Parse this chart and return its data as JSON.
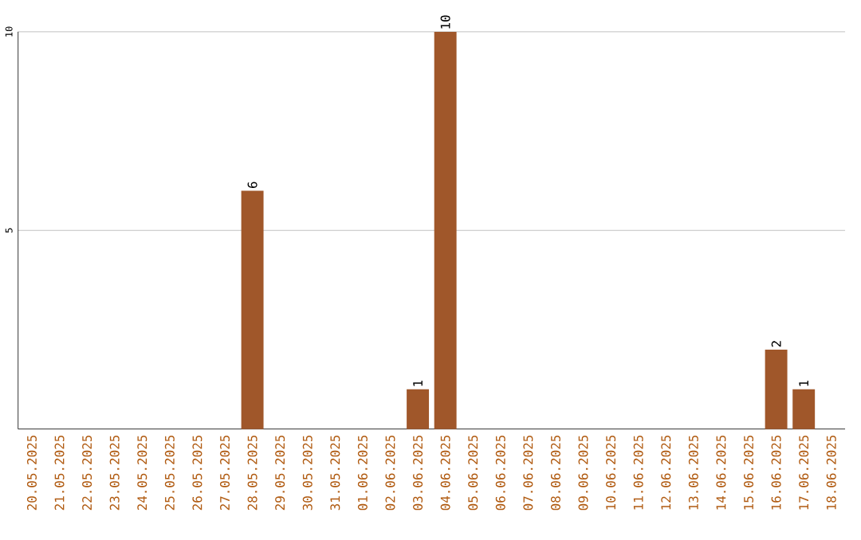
{
  "chart_data": {
    "type": "bar",
    "categories": [
      "20.05.2025",
      "21.05.2025",
      "22.05.2025",
      "23.05.2025",
      "24.05.2025",
      "25.05.2025",
      "26.05.2025",
      "27.05.2025",
      "28.05.2025",
      "29.05.2025",
      "30.05.2025",
      "31.05.2025",
      "01.06.2025",
      "02.06.2025",
      "03.06.2025",
      "04.06.2025",
      "05.06.2025",
      "06.06.2025",
      "07.06.2025",
      "08.06.2025",
      "09.06.2025",
      "10.06.2025",
      "11.06.2025",
      "12.06.2025",
      "13.06.2025",
      "14.06.2025",
      "15.06.2025",
      "16.06.2025",
      "17.06.2025",
      "18.06.2025"
    ],
    "values": [
      0,
      0,
      0,
      0,
      0,
      0,
      0,
      0,
      6,
      0,
      0,
      0,
      0,
      0,
      1,
      10,
      0,
      0,
      0,
      0,
      0,
      0,
      0,
      0,
      0,
      0,
      0,
      2,
      1,
      0
    ],
    "value_labels": [
      null,
      null,
      null,
      null,
      null,
      null,
      null,
      null,
      "6",
      null,
      null,
      null,
      null,
      null,
      "1",
      "10",
      null,
      null,
      null,
      null,
      null,
      null,
      null,
      null,
      null,
      null,
      null,
      "2",
      "1",
      null
    ],
    "color": "#a0572a",
    "ylim": [
      0,
      10
    ],
    "yticks": [
      5,
      10
    ],
    "grid": "y"
  }
}
